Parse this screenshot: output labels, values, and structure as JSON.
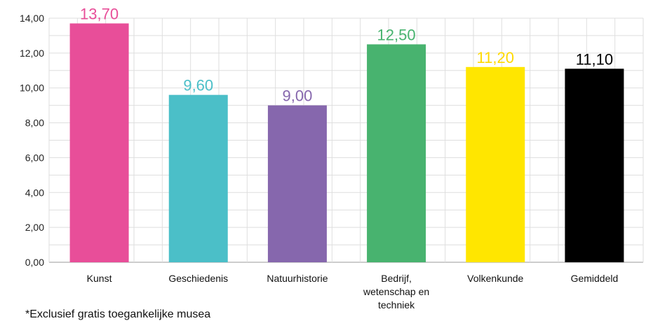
{
  "chart_data": {
    "type": "bar",
    "categories": [
      "Kunst",
      "Geschiedenis",
      "Natuurhistorie",
      "Bedrijf, wetenschap en techniek",
      "Volkenkunde",
      "Gemiddeld"
    ],
    "category_lines": [
      [
        "Kunst"
      ],
      [
        "Geschiedenis"
      ],
      [
        "Natuurhistorie"
      ],
      [
        "Bedrijf,",
        "wetenschap en",
        "techniek"
      ],
      [
        "Volkenkunde"
      ],
      [
        "Gemiddeld"
      ]
    ],
    "values": [
      13.7,
      9.6,
      9.0,
      12.5,
      11.2,
      11.1
    ],
    "value_labels": [
      "13,70",
      "9,60",
      "9,00",
      "12,50",
      "11,20",
      "11,10"
    ],
    "colors": [
      "#e84e99",
      "#4bbfc8",
      "#8667ad",
      "#48b36f",
      "#ffe600",
      "#000000"
    ],
    "label_colors": [
      "#e84e99",
      "#4bbfc8",
      "#8667ad",
      "#48b36f",
      "#ffd900",
      "#000000"
    ],
    "yticks": [
      "0,00",
      "2,00",
      "4,00",
      "6,00",
      "8,00",
      "10,00",
      "12,00",
      "14,00"
    ],
    "ylim": [
      0,
      14
    ],
    "grid": true,
    "title": "",
    "xlabel": "",
    "ylabel": ""
  },
  "footnote": "*Exclusief gratis toegankelijke musea"
}
